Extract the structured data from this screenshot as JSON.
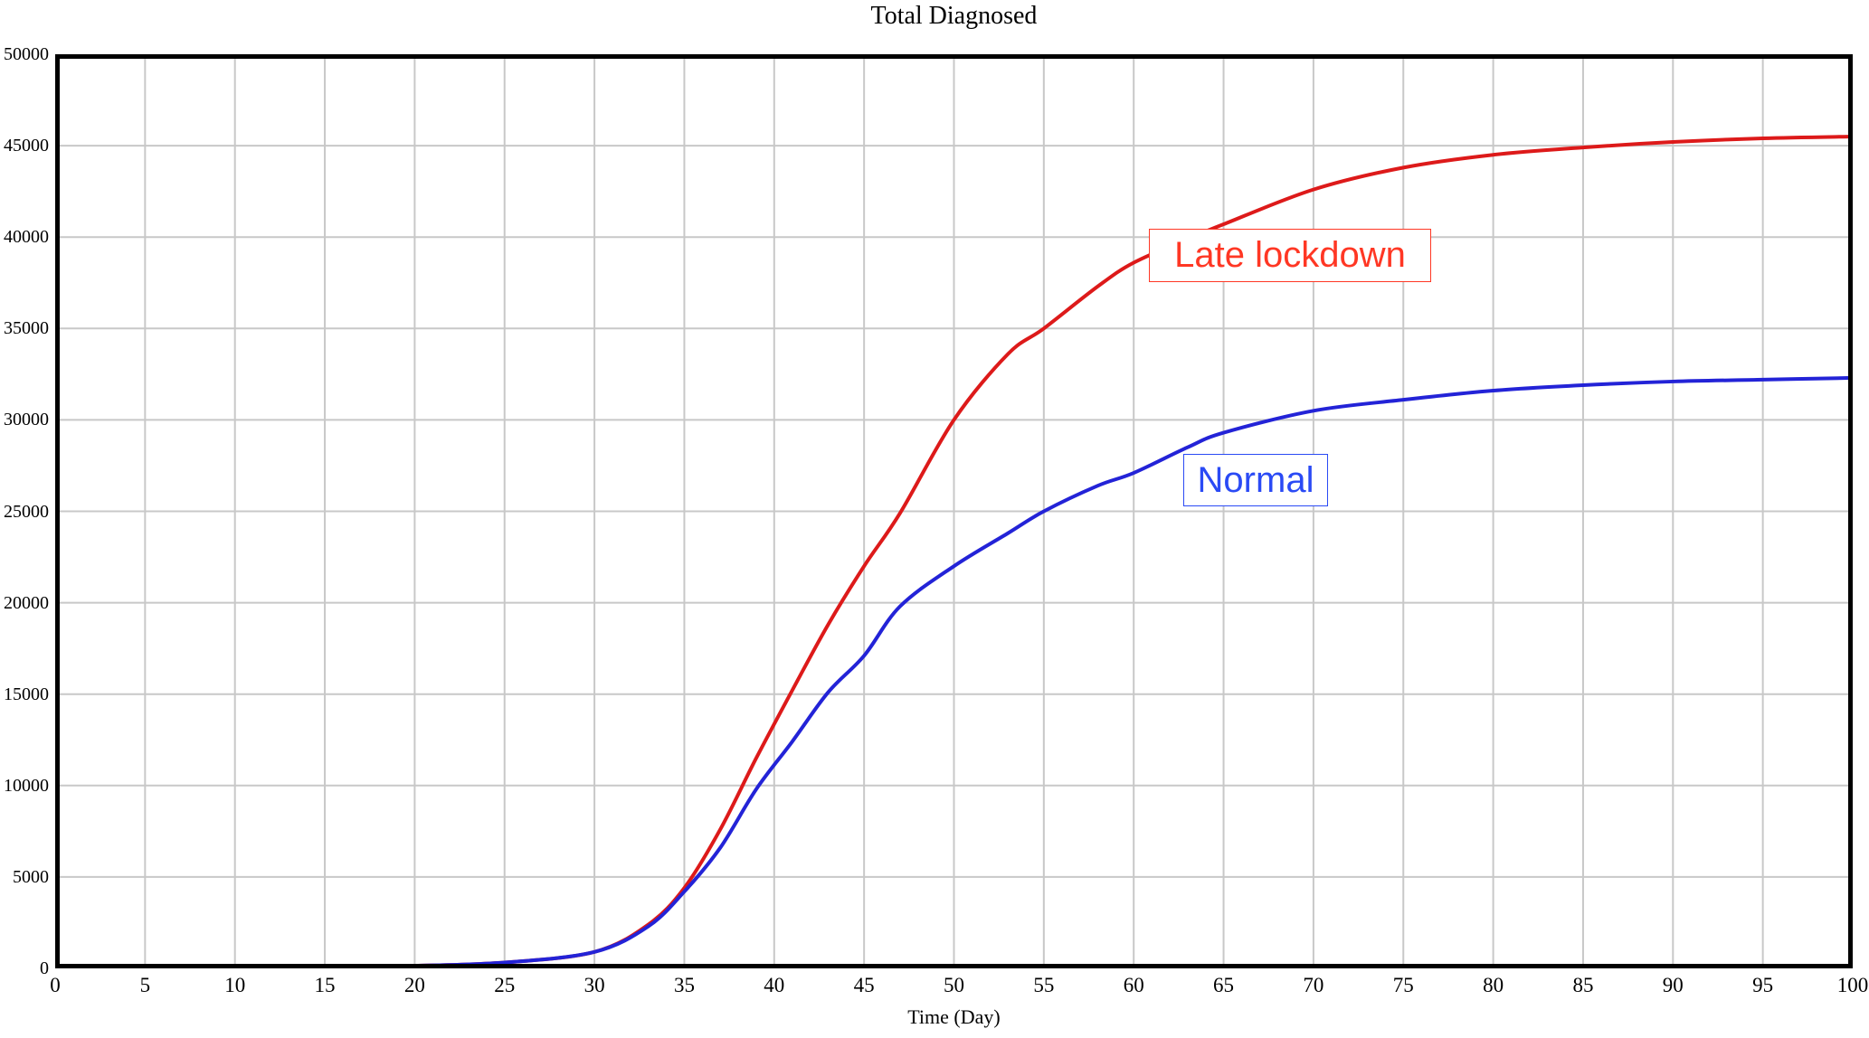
{
  "chart_data": {
    "type": "line",
    "title": "Total Diagnosed",
    "xlabel": "Time (Day)",
    "ylabel": "",
    "xlim": [
      0,
      100
    ],
    "ylim": [
      0,
      50000
    ],
    "grid": true,
    "legend_position": "inline-boxed-labels",
    "xticks": [
      0,
      5,
      10,
      15,
      20,
      25,
      30,
      35,
      40,
      45,
      50,
      55,
      60,
      65,
      70,
      75,
      80,
      85,
      90,
      95,
      100
    ],
    "yticks": [
      0,
      5000,
      10000,
      15000,
      20000,
      25000,
      30000,
      35000,
      40000,
      45000,
      50000
    ],
    "x": [
      0,
      5,
      10,
      15,
      20,
      25,
      30,
      33,
      35,
      37,
      39,
      41,
      43,
      45,
      47,
      50,
      53,
      55,
      58,
      60,
      63,
      65,
      70,
      75,
      80,
      85,
      90,
      95,
      100
    ],
    "series": [
      {
        "name": "Late lockdown",
        "line_color": "#dd1a1a",
        "label_color": "#ff3724",
        "values": [
          0,
          10,
          30,
          70,
          150,
          320,
          900,
          2400,
          4400,
          7600,
          11500,
          15200,
          18800,
          22000,
          24900,
          30000,
          33600,
          35000,
          37300,
          38600,
          39900,
          40700,
          42600,
          43800,
          44500,
          44900,
          45200,
          45400,
          45500
        ]
      },
      {
        "name": "Normal",
        "line_color": "#2323d7",
        "label_color": "#2a4af5",
        "values": [
          0,
          10,
          30,
          70,
          150,
          320,
          900,
          2300,
          4200,
          6600,
          9800,
          12400,
          15100,
          17100,
          19800,
          22000,
          23800,
          25000,
          26400,
          27100,
          28500,
          29300,
          30500,
          31100,
          31600,
          31900,
          32100,
          32200,
          32300
        ]
      }
    ]
  },
  "colors": {
    "background": "#ffffff",
    "grid": "#c8c8c8",
    "frame": "#000000",
    "tick_text": "#000000"
  }
}
